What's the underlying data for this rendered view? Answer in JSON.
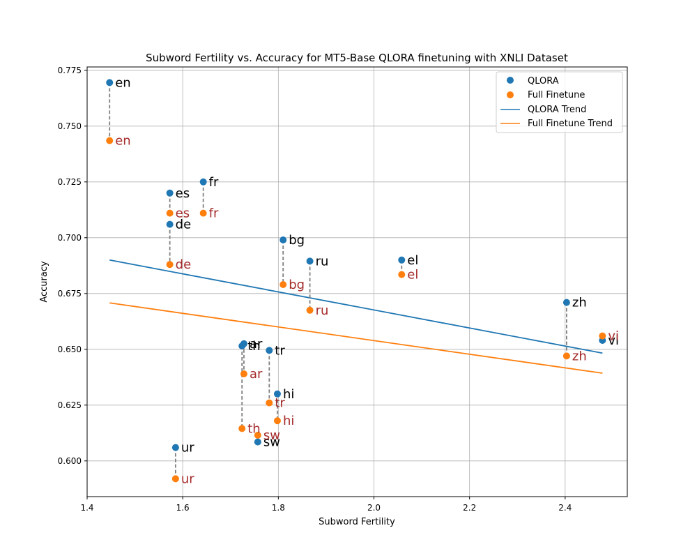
{
  "chart_data": {
    "type": "scatter",
    "title": "Subword Fertility vs. Accuracy for MT5-Base QLORA finetuning with XNLI Dataset",
    "xlabel": "Subword Fertility",
    "ylabel": "Accuracy",
    "xlim": [
      1.4,
      2.53
    ],
    "ylim": [
      0.584,
      0.7765
    ],
    "xticks": [
      1.4,
      1.6,
      1.8,
      2.0,
      2.2,
      2.4
    ],
    "xtick_labels": [
      "1.4",
      "1.6",
      "1.8",
      "2.0",
      "2.2",
      "2.4"
    ],
    "yticks": [
      0.6,
      0.625,
      0.65,
      0.675,
      0.7,
      0.725,
      0.75,
      0.775
    ],
    "ytick_labels": [
      "0.600",
      "0.625",
      "0.650",
      "0.675",
      "0.700",
      "0.725",
      "0.750",
      "0.775"
    ],
    "grid": true,
    "legend_position": "top-right",
    "colors": {
      "qlora": "#1f77b4",
      "full": "#ff7f0e",
      "full_label": "#a52a2a",
      "connector": "#808080"
    },
    "legend": {
      "qlora": "QLORA",
      "full": "Full Finetune",
      "qlora_trend": "QLORA Trend",
      "full_trend": "Full Finetune Trend"
    },
    "languages": [
      "en",
      "es",
      "fr",
      "de",
      "bg",
      "ru",
      "el",
      "zh",
      "vi",
      "ar",
      "th",
      "tr",
      "hi",
      "sw",
      "ur"
    ],
    "x": [
      1.447,
      1.573,
      1.643,
      1.573,
      1.81,
      1.866,
      2.058,
      2.403,
      2.478,
      1.728,
      1.724,
      1.781,
      1.798,
      1.757,
      1.585
    ],
    "series": [
      {
        "name": "QLORA",
        "values": [
          0.7695,
          0.72,
          0.725,
          0.706,
          0.699,
          0.6895,
          0.69,
          0.671,
          0.654,
          0.6525,
          0.6515,
          0.6495,
          0.63,
          0.6085,
          0.606
        ]
      },
      {
        "name": "Full Finetune",
        "values": [
          0.7435,
          0.711,
          0.711,
          0.688,
          0.679,
          0.6675,
          0.6835,
          0.647,
          0.656,
          0.639,
          0.6145,
          0.626,
          0.618,
          0.6115,
          0.592
        ]
      }
    ],
    "trends": [
      {
        "name": "QLORA Trend",
        "x": [
          1.447,
          2.478
        ],
        "y": [
          0.69,
          0.6483
        ]
      },
      {
        "name": "Full Finetune Trend",
        "x": [
          1.447,
          2.478
        ],
        "y": [
          0.6708,
          0.6393
        ]
      }
    ]
  }
}
